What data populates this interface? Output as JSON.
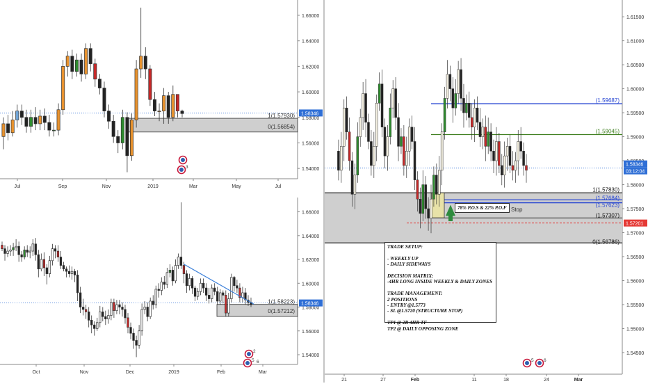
{
  "colors": {
    "up": "#2e8b2e",
    "down": "#c62828",
    "neutral_up": "#6fa3d6",
    "orange": "#e8922e",
    "zone": "#cfcfcf",
    "price_tag": "#2f6fd6",
    "stop_tag": "#e53935",
    "blue_line": "#1f3fd1",
    "green_line": "#3f7f1f"
  },
  "chart_data": [
    {
      "name": "weekly",
      "type": "candlestick",
      "x_ticks": [
        "Jul",
        "Sep",
        "Nov",
        "2019",
        "Mar",
        "May",
        "Jul"
      ],
      "y_ticks": [
        "1.66000",
        "1.64000",
        "1.62000",
        "1.60000",
        "1.58000",
        "1.56000",
        "1.54000"
      ],
      "ylim": [
        1.533,
        1.672
      ],
      "current_price": "1.58346",
      "zone": {
        "high": 1.5793,
        "low": 1.56854
      },
      "fib_labels": [
        "1(1.57930)",
        "0(1.56854)"
      ],
      "candles": [
        [
          1.565,
          1.575,
          1.555,
          1.58
        ],
        [
          1.575,
          1.568,
          1.562,
          1.582
        ],
        [
          1.568,
          1.578,
          1.565,
          1.585
        ],
        [
          1.578,
          1.585,
          1.572,
          1.59
        ],
        [
          1.585,
          1.58,
          1.574,
          1.59
        ],
        [
          1.58,
          1.573,
          1.568,
          1.586
        ],
        [
          1.573,
          1.58,
          1.568,
          1.586
        ],
        [
          1.58,
          1.575,
          1.57,
          1.588
        ],
        [
          1.575,
          1.581,
          1.57,
          1.586
        ],
        [
          1.581,
          1.576,
          1.57,
          1.587
        ],
        [
          1.576,
          1.57,
          1.565,
          1.582
        ],
        [
          1.57,
          1.57,
          1.565,
          1.576
        ],
        [
          1.57,
          1.586,
          1.566,
          1.591
        ],
        [
          1.586,
          1.62,
          1.582,
          1.625
        ],
        [
          1.62,
          1.628,
          1.612,
          1.632
        ],
        [
          1.628,
          1.616,
          1.61,
          1.633
        ],
        [
          1.616,
          1.625,
          1.612,
          1.63
        ],
        [
          1.625,
          1.614,
          1.608,
          1.63
        ],
        [
          1.614,
          1.634,
          1.61,
          1.638
        ],
        [
          1.634,
          1.622,
          1.616,
          1.638
        ],
        [
          1.622,
          1.61,
          1.604,
          1.626
        ],
        [
          1.61,
          1.603,
          1.598,
          1.614
        ],
        [
          1.603,
          1.585,
          1.58,
          1.608
        ],
        [
          1.585,
          1.577,
          1.571,
          1.59
        ],
        [
          1.577,
          1.565,
          1.56,
          1.582
        ],
        [
          1.565,
          1.56,
          1.552,
          1.57
        ],
        [
          1.56,
          1.58,
          1.555,
          1.586
        ],
        [
          1.58,
          1.55,
          1.537,
          1.584
        ],
        [
          1.55,
          1.578,
          1.546,
          1.583
        ],
        [
          1.578,
          1.618,
          1.572,
          1.625
        ],
        [
          1.618,
          1.628,
          1.611,
          1.666
        ],
        [
          1.628,
          1.618,
          1.61,
          1.635
        ],
        [
          1.618,
          1.594,
          1.589,
          1.621
        ],
        [
          1.594,
          1.585,
          1.581,
          1.6
        ],
        [
          1.585,
          1.585,
          1.577,
          1.591
        ],
        [
          1.585,
          1.597,
          1.575,
          1.603
        ],
        [
          1.597,
          1.58,
          1.575,
          1.6
        ],
        [
          1.58,
          1.598,
          1.577,
          1.605
        ],
        [
          1.598,
          1.585,
          1.58,
          1.598
        ],
        [
          1.585,
          1.583,
          1.58,
          1.586
        ]
      ],
      "badge_counts": [
        "3"
      ]
    },
    {
      "name": "daily",
      "type": "candlestick",
      "x_ticks": [
        "Oct",
        "Nov",
        "Dec",
        "2019",
        "Feb",
        "Mar"
      ],
      "y_ticks": [
        "1.66000",
        "1.64000",
        "1.62000",
        "1.60000",
        "1.58000",
        "1.56000",
        "1.54000"
      ],
      "ylim": [
        1.533,
        1.672
      ],
      "current_price": "1.58346",
      "zone": {
        "high": 1.58223,
        "low": 1.57212
      },
      "fib_labels": [
        "1(1.58223)",
        "0(1.57212)"
      ],
      "trendline": {
        "start": {
          "bar": 65,
          "price": 1.616
        },
        "end": {
          "bar": 90,
          "price": 1.5825
        }
      },
      "candles": [
        [
          1.632,
          1.629,
          1.627,
          1.635
        ],
        [
          1.629,
          1.625,
          1.619,
          1.632
        ],
        [
          1.625,
          1.627,
          1.622,
          1.631
        ],
        [
          1.627,
          1.628,
          1.623,
          1.632
        ],
        [
          1.628,
          1.63,
          1.623,
          1.634
        ],
        [
          1.63,
          1.631,
          1.627,
          1.637
        ],
        [
          1.631,
          1.624,
          1.618,
          1.635
        ],
        [
          1.624,
          1.622,
          1.618,
          1.627
        ],
        [
          1.622,
          1.628,
          1.62,
          1.631
        ],
        [
          1.628,
          1.626,
          1.622,
          1.632
        ],
        [
          1.626,
          1.627,
          1.621,
          1.631
        ],
        [
          1.627,
          1.633,
          1.623,
          1.637
        ],
        [
          1.633,
          1.624,
          1.619,
          1.638
        ],
        [
          1.624,
          1.612,
          1.605,
          1.628
        ],
        [
          1.612,
          1.62,
          1.61,
          1.625
        ],
        [
          1.62,
          1.613,
          1.606,
          1.626
        ],
        [
          1.613,
          1.608,
          1.599,
          1.616
        ],
        [
          1.608,
          1.619,
          1.605,
          1.623
        ],
        [
          1.619,
          1.629,
          1.615,
          1.633
        ],
        [
          1.629,
          1.627,
          1.621,
          1.632
        ],
        [
          1.627,
          1.622,
          1.618,
          1.632
        ],
        [
          1.622,
          1.615,
          1.612,
          1.627
        ],
        [
          1.615,
          1.612,
          1.61,
          1.618
        ],
        [
          1.612,
          1.61,
          1.605,
          1.614
        ],
        [
          1.61,
          1.608,
          1.605,
          1.615
        ],
        [
          1.608,
          1.61,
          1.603,
          1.614
        ],
        [
          1.61,
          1.607,
          1.601,
          1.612
        ],
        [
          1.607,
          1.592,
          1.585,
          1.611
        ],
        [
          1.592,
          1.58,
          1.575,
          1.597
        ],
        [
          1.58,
          1.578,
          1.573,
          1.587
        ],
        [
          1.578,
          1.576,
          1.57,
          1.582
        ],
        [
          1.576,
          1.569,
          1.563,
          1.58
        ],
        [
          1.569,
          1.565,
          1.558,
          1.573
        ],
        [
          1.565,
          1.562,
          1.556,
          1.568
        ],
        [
          1.562,
          1.567,
          1.56,
          1.571
        ],
        [
          1.567,
          1.576,
          1.563,
          1.581
        ],
        [
          1.576,
          1.572,
          1.568,
          1.58
        ],
        [
          1.572,
          1.57,
          1.565,
          1.577
        ],
        [
          1.57,
          1.573,
          1.566,
          1.578
        ],
        [
          1.573,
          1.584,
          1.569,
          1.587
        ],
        [
          1.584,
          1.577,
          1.571,
          1.587
        ],
        [
          1.577,
          1.582,
          1.574,
          1.586
        ],
        [
          1.582,
          1.58,
          1.574,
          1.586
        ],
        [
          1.58,
          1.578,
          1.572,
          1.584
        ],
        [
          1.578,
          1.571,
          1.566,
          1.582
        ],
        [
          1.571,
          1.563,
          1.558,
          1.575
        ],
        [
          1.563,
          1.558,
          1.553,
          1.567
        ],
        [
          1.558,
          1.552,
          1.545,
          1.562
        ],
        [
          1.552,
          1.548,
          1.538,
          1.556
        ],
        [
          1.548,
          1.56,
          1.545,
          1.565
        ],
        [
          1.56,
          1.578,
          1.556,
          1.583
        ],
        [
          1.578,
          1.58,
          1.574,
          1.585
        ],
        [
          1.58,
          1.572,
          1.568,
          1.584
        ],
        [
          1.572,
          1.585,
          1.57,
          1.588
        ],
        [
          1.585,
          1.582,
          1.578,
          1.59
        ],
        [
          1.582,
          1.595,
          1.579,
          1.598
        ],
        [
          1.595,
          1.594,
          1.588,
          1.6
        ],
        [
          1.594,
          1.601,
          1.59,
          1.605
        ],
        [
          1.601,
          1.599,
          1.595,
          1.606
        ],
        [
          1.599,
          1.609,
          1.596,
          1.613
        ],
        [
          1.609,
          1.611,
          1.605,
          1.616
        ],
        [
          1.611,
          1.602,
          1.598,
          1.614
        ],
        [
          1.602,
          1.615,
          1.6,
          1.62
        ],
        [
          1.615,
          1.622,
          1.612,
          1.625
        ],
        [
          1.622,
          1.615,
          1.612,
          1.668
        ],
        [
          1.615,
          1.608,
          1.6,
          1.618
        ],
        [
          1.608,
          1.598,
          1.592,
          1.611
        ],
        [
          1.598,
          1.604,
          1.594,
          1.608
        ],
        [
          1.604,
          1.596,
          1.591,
          1.606
        ],
        [
          1.596,
          1.589,
          1.585,
          1.598
        ],
        [
          1.589,
          1.593,
          1.586,
          1.596
        ],
        [
          1.593,
          1.6,
          1.59,
          1.604
        ],
        [
          1.6,
          1.596,
          1.592,
          1.604
        ],
        [
          1.596,
          1.59,
          1.585,
          1.6
        ],
        [
          1.59,
          1.587,
          1.583,
          1.596
        ],
        [
          1.587,
          1.596,
          1.584,
          1.599
        ],
        [
          1.596,
          1.593,
          1.59,
          1.6
        ],
        [
          1.593,
          1.585,
          1.582,
          1.597
        ],
        [
          1.585,
          1.592,
          1.582,
          1.595
        ],
        [
          1.592,
          1.59,
          1.583,
          1.594
        ],
        [
          1.59,
          1.575,
          1.572,
          1.594
        ],
        [
          1.575,
          1.587,
          1.572,
          1.592
        ],
        [
          1.587,
          1.605,
          1.584,
          1.608
        ],
        [
          1.605,
          1.598,
          1.593,
          1.606
        ],
        [
          1.598,
          1.596,
          1.592,
          1.603
        ],
        [
          1.596,
          1.588,
          1.584,
          1.6
        ],
        [
          1.588,
          1.592,
          1.584,
          1.597
        ],
        [
          1.592,
          1.586,
          1.582,
          1.596
        ],
        [
          1.586,
          1.584,
          1.581,
          1.59
        ],
        [
          1.584,
          1.582,
          1.58,
          1.588
        ]
      ],
      "badge_counts": [
        "2",
        "5",
        "6"
      ]
    },
    {
      "name": "h4",
      "type": "candlestick",
      "x_ticks": [
        "21",
        "27",
        "Feb",
        "11",
        "18",
        "24",
        "Mar"
      ],
      "y_ticks": [
        "1.61500",
        "1.61000",
        "1.60500",
        "1.60000",
        "1.59500",
        "1.59000",
        "1.58500",
        "1.58000",
        "1.57500",
        "1.57000",
        "1.56500",
        "1.56000",
        "1.55500",
        "1.55000",
        "1.54500"
      ],
      "ylim": [
        1.5405,
        1.6185
      ],
      "current_price": "1.58346",
      "countdown": "03:12:04",
      "stop_price": "1.57201",
      "zones": [
        {
          "high": 1.5783,
          "low": 1.57307
        },
        {
          "high": 1.57307,
          "low": 1.56786
        }
      ],
      "levels": [
        {
          "label": "(1.59687)",
          "price": 1.59687,
          "color": "blue"
        },
        {
          "label": "(1.59045)",
          "price": 1.59045,
          "color": "green"
        },
        {
          "label": "1(1.57830)",
          "price": 1.5783,
          "color": "black"
        },
        {
          "label": "(1.57684)",
          "price": 1.57684,
          "color": "blue"
        },
        {
          "label": "(1.57623)",
          "price": 1.57623,
          "color": "blue"
        },
        {
          "label": "(1.57307)",
          "price": 1.57307,
          "color": "black"
        },
        {
          "label": "0(1.56786)",
          "price": 1.56786,
          "color": "black"
        }
      ],
      "stop_label": "Stop",
      "position_label": "78% P.O.S & 22% P.O.F",
      "badge_counts": [
        "5",
        "6"
      ]
    }
  ],
  "trade_setup": {
    "lines": [
      "TRADE SETUP:",
      "",
      "- WEEKLY UP",
      "- DAILY SIDEWAYS",
      "",
      "DECISION MATRIX:",
      "-4HR LONG INSIDE WEEKLY & DAILY ZONES",
      "",
      "TRADE MANAGEMENT:",
      "2 POSITIONS",
      "- ENTRY @1.5773",
      "- SL @1.5720 (STRUCTURE STOP)",
      "",
      "TP1 @ 2R 4HR TF",
      "TP2 @ DAILY OPPOSING ZONE"
    ]
  }
}
